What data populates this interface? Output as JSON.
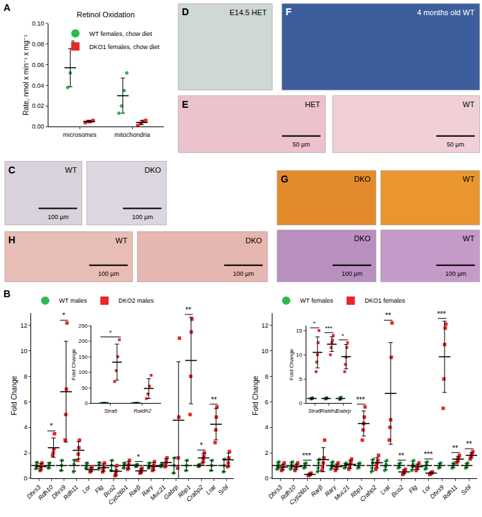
{
  "chart_data": [
    {
      "panel": "A",
      "type": "scatter",
      "title": "Retinol Oxidation",
      "y_label": "Rate, nmol x min⁻¹ x mg⁻¹",
      "categories": [
        "microsomes",
        "mitochondria"
      ],
      "ylim": [
        0,
        0.1
      ],
      "yticks": [
        {
          "value": 0,
          "label": "0.00"
        },
        0.02,
        0.04,
        0.06,
        0.08,
        {
          "value": 0.1,
          "label": "0.10"
        }
      ],
      "grid": false,
      "legend": "top right",
      "series": [
        {
          "name": "WT females, chow diet",
          "color": "#2db84d",
          "marker": "circle",
          "values": [
            [
              0.038,
              0.052,
              0.082
            ],
            [
              0.013,
              0.02,
              0.035,
              0.052
            ]
          ],
          "mean": [
            0.057,
            0.03
          ],
          "sd": [
            0.0185,
            0.017
          ]
        },
        {
          "name": "DKO1 females, chow diet",
          "color": "#e8262a",
          "marker": "square",
          "values": [
            [
              0.004,
              0.005,
              0.005,
              0.006
            ],
            [
              0.001,
              0.003,
              0.005,
              0.006
            ]
          ],
          "mean": [
            0.005,
            0.004
          ],
          "sd": [
            0.0008,
            0.002
          ]
        }
      ]
    },
    {
      "panel": "B",
      "type": "scatter",
      "y_label": "Fold Change",
      "categories": [
        "Dhrs3",
        "Rdh10",
        "Dhrs9",
        "Rdh11",
        "Lor",
        "Flg",
        "Bco2",
        "Cyp26b1",
        "Rarβ",
        "Rarγ",
        "Muc21",
        "Gabrp",
        "Rbp1",
        "Crabp2",
        "Lrat",
        "Srbl"
      ],
      "ylim": [
        0,
        13
      ],
      "yticks": [
        0,
        2,
        4,
        6,
        8,
        10,
        12
      ],
      "grid": false,
      "legend": "top",
      "significance": [
        null,
        "*",
        "*",
        null,
        null,
        null,
        null,
        null,
        "*",
        null,
        null,
        null,
        "**",
        "*",
        "**",
        null
      ],
      "series": [
        {
          "name": "WT males",
          "color": "#2db84d",
          "marker": "circle",
          "values": [
            [
              0.75,
              1.0,
              1.25
            ],
            [
              0.8,
              1.0,
              1.2
            ],
            [
              0.6,
              1.0,
              1.4
            ],
            [
              0.5,
              1.1,
              1.4
            ],
            [
              0.8,
              1.0,
              1.2
            ],
            [
              0.7,
              1.1,
              1.2
            ],
            [
              0.6,
              1.0,
              1.4
            ],
            [
              0.8,
              1.0,
              1.2
            ],
            [
              0.9,
              1.0,
              1.1
            ],
            [
              0.8,
              1.0,
              1.2
            ],
            [
              0.9,
              1.0,
              1.1
            ],
            [
              0.4,
              1.0,
              1.6
            ],
            [
              0.6,
              1.0,
              1.4
            ],
            [
              0.9,
              1.0,
              1.1
            ],
            [
              0.6,
              1.0,
              1.4
            ],
            [
              0.5,
              1.0,
              1.5
            ]
          ],
          "mean": [
            1.0,
            1.0,
            1.0,
            1.0,
            1.0,
            1.0,
            1.0,
            1.0,
            1.0,
            1.0,
            1.0,
            1.0,
            1.0,
            1.0,
            1.0,
            1.0
          ],
          "sd": [
            0.25,
            0.2,
            0.4,
            0.45,
            0.2,
            0.26,
            0.4,
            0.2,
            0.1,
            0.2,
            0.1,
            0.6,
            0.4,
            0.1,
            0.4,
            0.5
          ]
        },
        {
          "name": "DKO2 males",
          "color": "#e8262a",
          "marker": "square",
          "values": [
            [
              0.6,
              0.8,
              1.0,
              1.2
            ],
            [
              1.8,
              2.0,
              2.3,
              3.5
            ],
            [
              3.0,
              5.0,
              7.0,
              12.2
            ],
            [
              1.4,
              1.9,
              2.4,
              3.0
            ],
            [
              0.5,
              0.6,
              0.7,
              0.9
            ],
            [
              0.5,
              0.7,
              0.9,
              1.2
            ],
            [
              0.2,
              0.4,
              0.6,
              1.0
            ],
            [
              0.7,
              0.9,
              1.1,
              1.4
            ],
            [
              0.4,
              0.5,
              0.6,
              0.8
            ],
            [
              0.6,
              0.8,
              1.0,
              1.3
            ],
            [
              0.9,
              1.1,
              1.3,
              1.6
            ],
            [
              0.8,
              1.6,
              4.8,
              11.0
            ],
            [
              5.0,
              8.0,
              11.5,
              12.5
            ],
            [
              1.2,
              1.5,
              1.7,
              2.0
            ],
            [
              2.8,
              3.8,
              4.8,
              5.6
            ],
            [
              0.9,
              1.2,
              1.6,
              2.1
            ]
          ],
          "mean": [
            0.9,
            2.4,
            6.8,
            2.2,
            0.68,
            0.83,
            0.55,
            1.03,
            0.58,
            0.93,
            1.23,
            4.55,
            9.25,
            1.6,
            4.25,
            1.45
          ],
          "sd": [
            0.26,
            0.76,
            3.96,
            0.68,
            0.17,
            0.3,
            0.34,
            0.3,
            0.17,
            0.3,
            0.3,
            4.6,
            3.4,
            0.34,
            1.23,
            0.52
          ]
        }
      ]
    },
    {
      "type": "scatter",
      "y_label": "Fold Change",
      "categories": [
        "Stra6",
        "Raldh2"
      ],
      "ylim": [
        0,
        250
      ],
      "yticks": [
        0,
        50,
        100,
        150,
        200,
        250
      ],
      "grid": false,
      "significance": [
        "*",
        null
      ],
      "series": [
        {
          "name": "WT males",
          "color": "#2db84d",
          "marker": "circle",
          "values": [
            [
              0.8,
              1.0,
              1.2
            ],
            [
              0.7,
              1.0,
              1.3
            ]
          ],
          "mean": [
            1.0,
            1.0
          ],
          "sd": [
            0.2,
            0.3
          ]
        },
        {
          "name": "DKO2 males",
          "color": "#e8262a",
          "marker": "square",
          "values": [
            [
              70,
              105,
              150,
              205
            ],
            [
              15,
              30,
              55,
              90
            ]
          ],
          "mean": [
            132.5,
            47.5
          ],
          "sd": [
            58,
            32
          ]
        }
      ]
    },
    {
      "type": "scatter",
      "y_label": "Fold Change",
      "categories": [
        "Dhrs3",
        "Rdh10",
        "Cyp26b1",
        "Rarβ",
        "Rarγ",
        "Muc21",
        "Rbp1",
        "Crabp2",
        "Lrat",
        "Bco2",
        "Flg",
        "Lor",
        "Dhrs9",
        "Rdh11",
        "Srbl"
      ],
      "ylim": [
        0,
        13
      ],
      "yticks": [
        0,
        2,
        4,
        6,
        8,
        10,
        12
      ],
      "grid": false,
      "legend": "top",
      "significance": [
        null,
        null,
        "***",
        null,
        null,
        null,
        "***",
        null,
        "**",
        "**",
        null,
        "***",
        "***",
        "**",
        "**"
      ],
      "series": [
        {
          "name": "WT females",
          "color": "#2db84d",
          "marker": "circle",
          "values": [
            [
              0.7,
              0.9,
              1.1,
              1.3
            ],
            [
              0.7,
              0.9,
              1.1,
              1.3
            ],
            [
              0.8,
              0.9,
              1.1,
              1.2
            ],
            [
              0.5,
              0.8,
              1.2,
              1.5
            ],
            [
              0.7,
              0.9,
              1.1,
              1.3
            ],
            [
              0.8,
              0.9,
              1.1,
              1.2
            ],
            [
              0.8,
              0.9,
              1.1,
              1.2
            ],
            [
              0.5,
              0.8,
              1.2,
              1.5
            ],
            [
              0.6,
              0.9,
              1.1,
              1.4
            ],
            [
              0.8,
              0.9,
              1.1,
              1.2
            ],
            [
              0.6,
              0.9,
              1.1,
              1.4
            ],
            [
              0.7,
              0.9,
              1.1,
              1.3
            ],
            [
              0.8,
              0.9,
              1.1,
              1.2
            ],
            [
              0.8,
              0.9,
              1.1,
              1.2
            ],
            [
              0.8,
              0.9,
              1.1,
              1.2
            ]
          ],
          "mean": [
            1.0,
            1.0,
            1.0,
            1.0,
            1.0,
            1.0,
            1.0,
            1.0,
            1.0,
            1.0,
            1.0,
            1.0,
            1.0,
            1.0,
            1.0
          ],
          "sd": [
            0.26,
            0.26,
            0.18,
            0.44,
            0.26,
            0.18,
            0.18,
            0.44,
            0.34,
            0.18,
            0.34,
            0.26,
            0.18,
            0.18,
            0.18
          ]
        },
        {
          "name": "DKO1 females",
          "color": "#e8262a",
          "marker": "square",
          "values": [
            [
              0.6,
              0.7,
              0.9,
              1.0,
              1.2
            ],
            [
              0.6,
              0.8,
              0.9,
              1.0,
              1.2
            ],
            [
              0.2,
              0.25,
              0.3,
              0.35,
              0.4
            ],
            [
              0.6,
              0.9,
              1.2,
              1.6,
              3.0
            ],
            [
              0.6,
              0.8,
              0.9,
              1.0,
              1.2
            ],
            [
              0.7,
              0.9,
              1.1,
              1.3,
              1.5
            ],
            [
              3.0,
              3.8,
              4.3,
              4.8,
              5.6
            ],
            [
              0.7,
              1.0,
              1.2,
              1.4,
              1.8
            ],
            [
              3.0,
              4.0,
              4.6,
              9.5,
              12.2
            ],
            [
              0.3,
              0.4,
              0.5,
              0.6,
              0.7
            ],
            [
              0.6,
              0.8,
              0.9,
              1.0,
              1.2
            ],
            [
              0.3,
              0.35,
              0.4,
              0.45,
              0.5
            ],
            [
              5.5,
              7.8,
              10.5,
              11.8,
              12.1
            ],
            [
              1.2,
              1.4,
              1.5,
              1.6,
              1.8
            ],
            [
              1.5,
              1.7,
              1.8,
              1.9,
              2.1
            ]
          ],
          "mean": [
            0.88,
            0.9,
            0.3,
            1.46,
            0.9,
            1.1,
            4.3,
            1.22,
            6.66,
            0.5,
            0.9,
            0.4,
            9.54,
            1.5,
            1.8
          ],
          "sd": [
            0.23,
            0.22,
            0.08,
            0.94,
            0.22,
            0.32,
            0.98,
            0.41,
            4.0,
            0.16,
            0.22,
            0.08,
            2.8,
            0.22,
            0.22
          ]
        }
      ]
    },
    {
      "type": "scatter",
      "y_label": "Fold Change",
      "categories": [
        "Stra6",
        "Raldh2",
        "Gabrp"
      ],
      "ylim": [
        0,
        16
      ],
      "yticks": [
        0,
        5,
        10,
        15
      ],
      "grid": false,
      "significance": [
        "*",
        "***",
        "*"
      ],
      "series": [
        {
          "name": "WT females",
          "color": "#2db84d",
          "marker": "circle",
          "values": [
            [
              0.8,
              1.0,
              1.2
            ],
            [
              0.8,
              1.0,
              1.2
            ],
            [
              0.7,
              1.0,
              1.3
            ]
          ],
          "mean": [
            1.0,
            1.0,
            1.0
          ],
          "sd": [
            0.2,
            0.2,
            0.3
          ]
        },
        {
          "name": "DKO1 females",
          "color": "#e8262a",
          "marker": "square",
          "values": [
            [
              6.5,
              8.5,
              10,
              12.5,
              15
            ],
            [
              10,
              11.5,
              12.5,
              13,
              14
            ],
            [
              6.5,
              8,
              9.5,
              11.5,
              12.5
            ]
          ],
          "mean": [
            10.5,
            12.2,
            9.6
          ],
          "sd": [
            3.2,
            1.5,
            2.5
          ]
        }
      ]
    }
  ],
  "image_panels": [
    {
      "panel": "C",
      "images": [
        {
          "label": "WT",
          "scale_bar": "100 µm"
        },
        {
          "label": "DKO",
          "scale_bar": "100 µm"
        }
      ]
    },
    {
      "panel": "D",
      "images": [
        {
          "label": "E14.5 HET"
        }
      ]
    },
    {
      "panel": "E",
      "images": [
        {
          "label": "HET",
          "scale_bar": "50 µm"
        },
        {
          "label": "WT",
          "scale_bar": "50 µm"
        }
      ]
    },
    {
      "panel": "F",
      "images": [
        {
          "label": "4 months old WT"
        }
      ]
    },
    {
      "panel": "G",
      "images": [
        {
          "label": "DKO"
        },
        {
          "label": "WT"
        },
        {
          "label": "DKO",
          "scale_bar": "100 µm"
        },
        {
          "label": "WT",
          "scale_bar": "100 µm"
        }
      ]
    },
    {
      "panel": "H",
      "images": [
        {
          "label": "WT",
          "scale_bar": "100 µm"
        },
        {
          "label": "DKO",
          "scale_bar": "100 µm"
        }
      ]
    }
  ]
}
